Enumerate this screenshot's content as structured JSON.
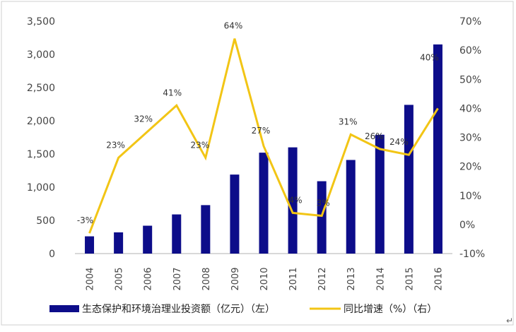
{
  "chart_data": {
    "type": "bar",
    "categories": [
      "2004",
      "2005",
      "2006",
      "2007",
      "2008",
      "2009",
      "2010",
      "2011",
      "2012",
      "2013",
      "2014",
      "2015",
      "2016"
    ],
    "series": [
      {
        "name": "生态保护和环境治理业投资额（亿元）（左）",
        "type": "bar",
        "axis": "left",
        "color": "#0d0d8a",
        "values": [
          260,
          320,
          420,
          590,
          730,
          1190,
          1520,
          1600,
          1090,
          1410,
          1790,
          2240,
          3150
        ]
      },
      {
        "name": "同比增速（%）（右）",
        "type": "line",
        "axis": "right",
        "color": "#f2c515",
        "values": [
          -3,
          23,
          32,
          41,
          23,
          64,
          27,
          4,
          3,
          31,
          26,
          24,
          40
        ],
        "data_labels": [
          "-3%",
          "23%",
          "32%",
          "41%",
          "23%",
          "64%",
          "27%",
          "4%",
          "3%",
          "31%",
          "26%",
          "24%",
          "40%"
        ]
      }
    ],
    "y_left": {
      "ylim": [
        0,
        3500
      ],
      "ticks": [
        "0",
        "500",
        "1,000",
        "1,500",
        "2,000",
        "2,500",
        "3,000",
        "3,500"
      ],
      "tick_values": [
        0,
        500,
        1000,
        1500,
        2000,
        2500,
        3000,
        3500
      ]
    },
    "y_right": {
      "ylim": [
        -10,
        70
      ],
      "ticks": [
        "-10%",
        "0%",
        "10%",
        "20%",
        "30%",
        "40%",
        "50%",
        "60%",
        "70%"
      ],
      "tick_values": [
        -10,
        0,
        10,
        20,
        30,
        40,
        50,
        60,
        70
      ]
    },
    "title": "",
    "xlabel": "",
    "ylabel": "",
    "grid": false,
    "legend_position": "bottom"
  },
  "note_mark": "↵"
}
